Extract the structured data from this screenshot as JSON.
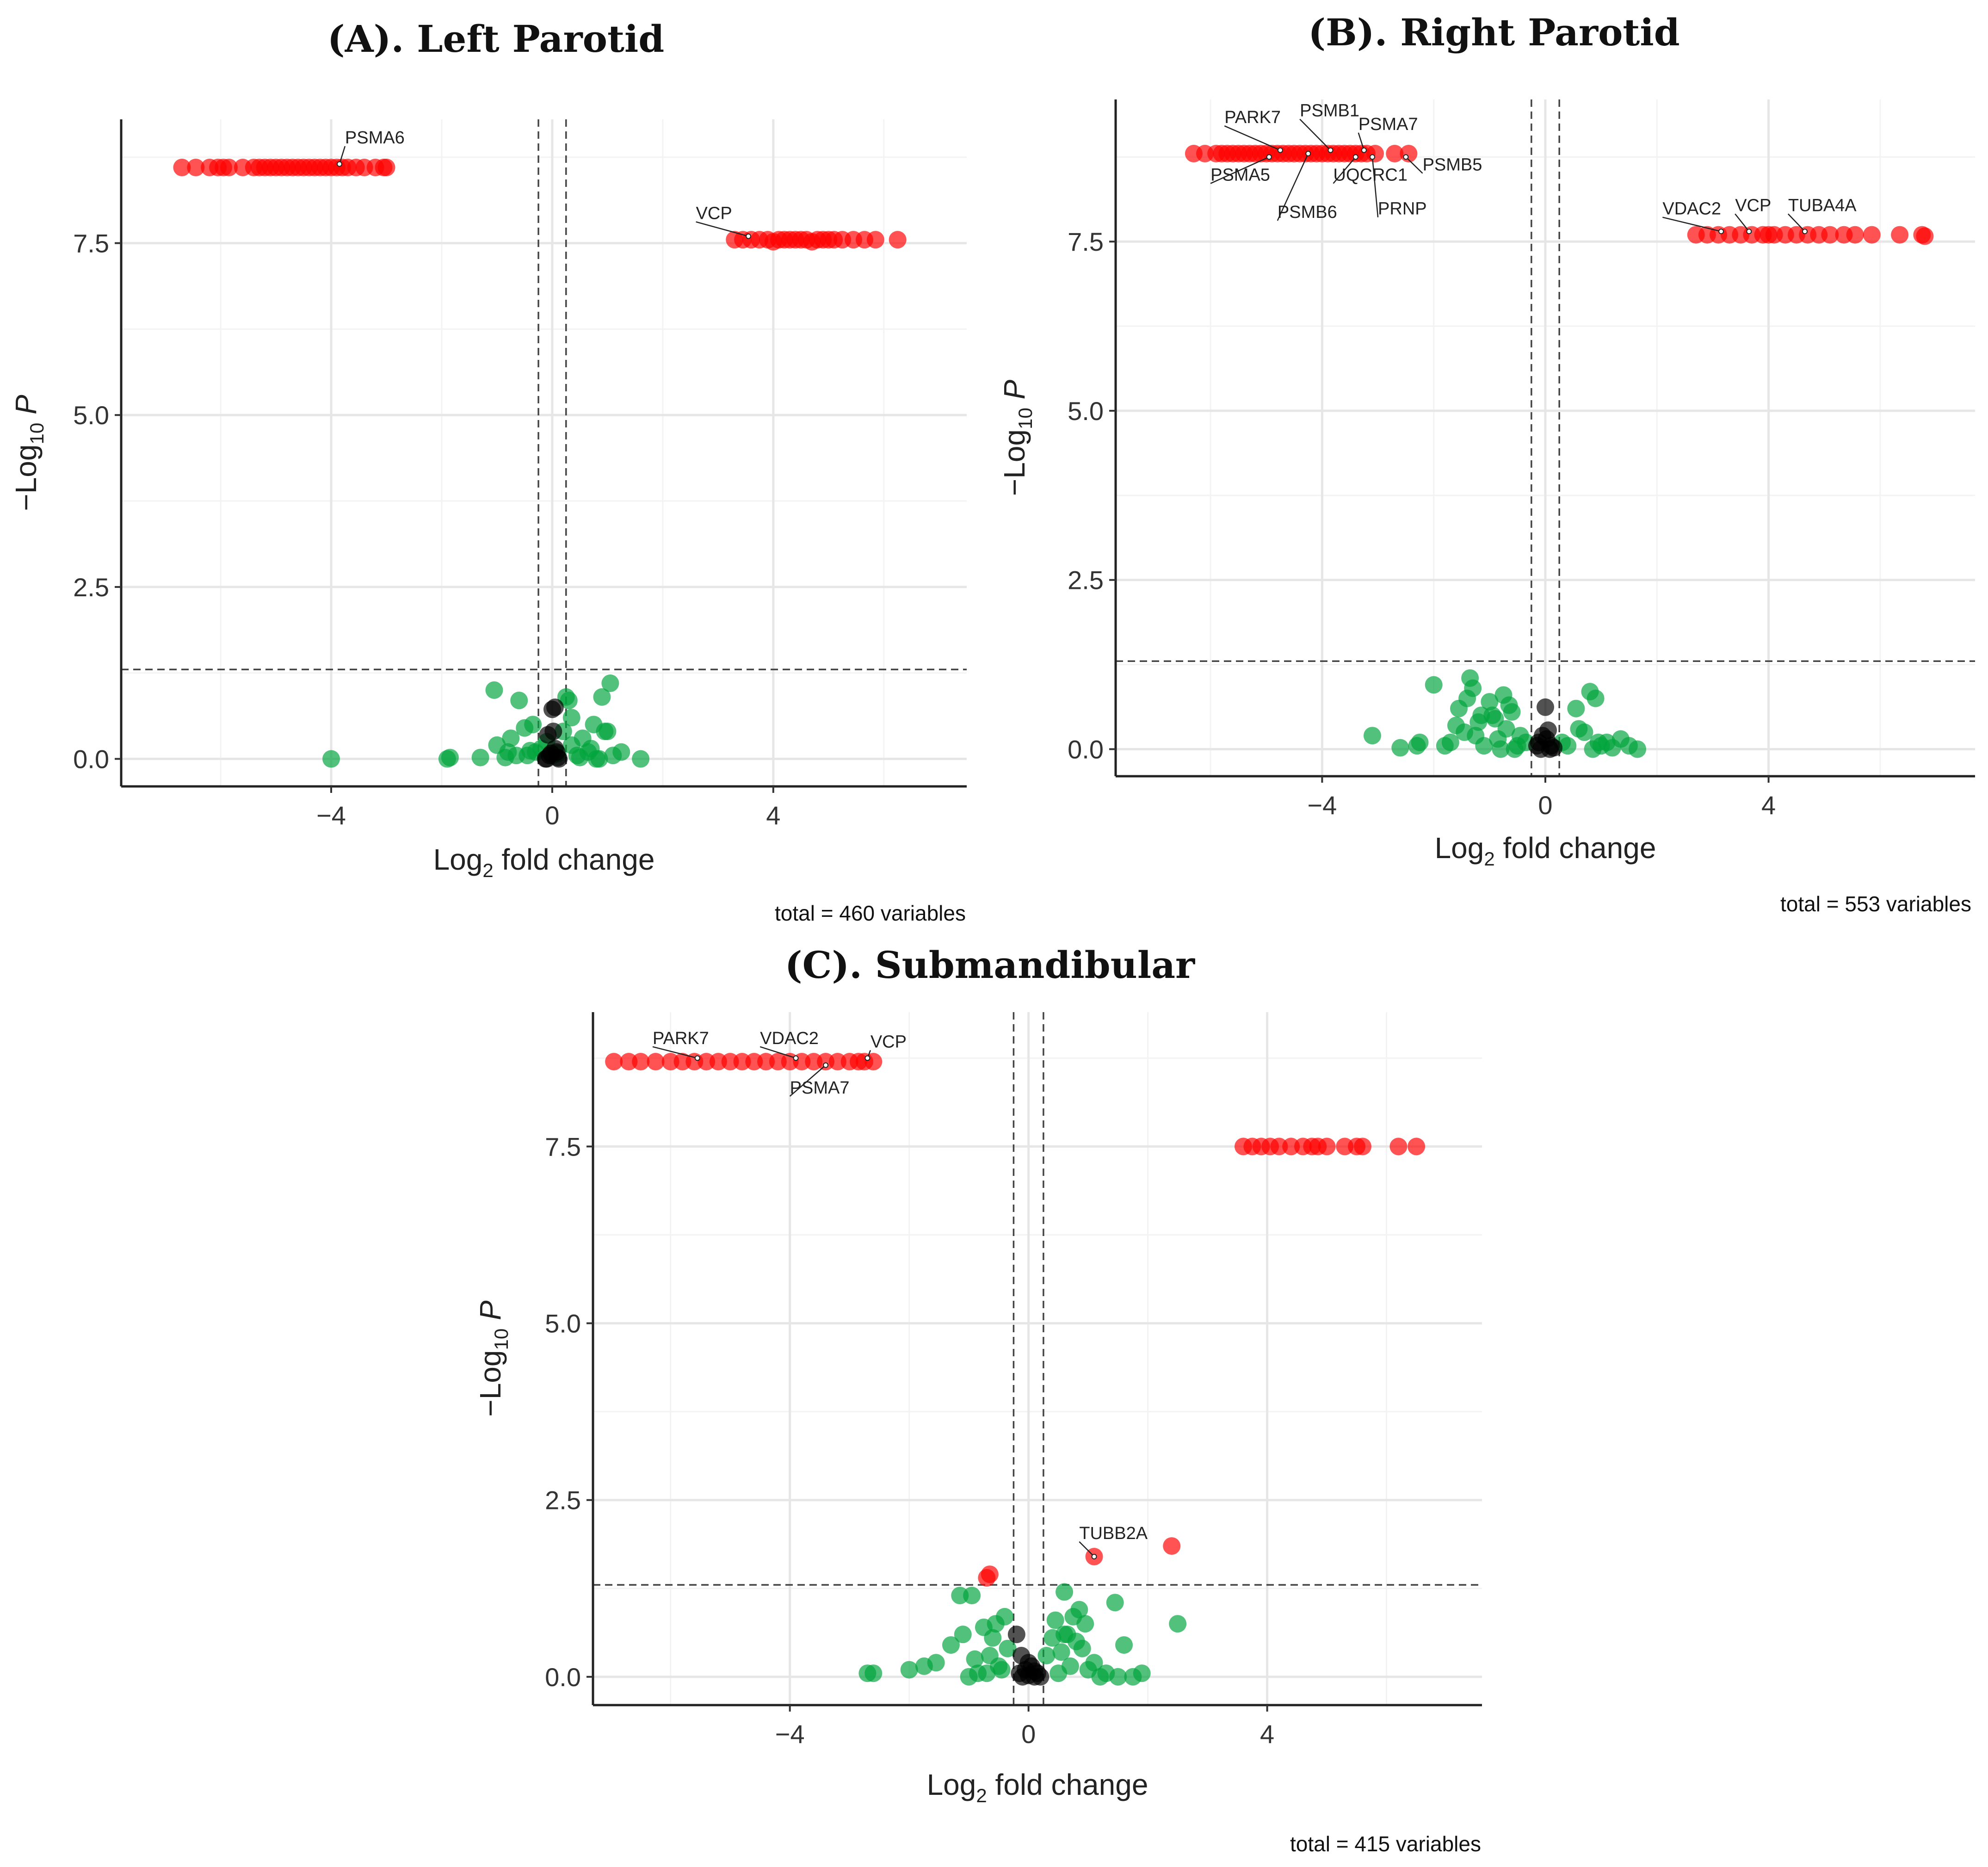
{
  "figure": {
    "panels": [
      {
        "id": "A",
        "title_prefix": "(A). ",
        "title_main": "Left Parotid",
        "caption": "total = 460 variables"
      },
      {
        "id": "B",
        "title_prefix": "(B). ",
        "title_main": "Right Parotid",
        "caption": "total = 553 variables"
      },
      {
        "id": "C",
        "title_prefix": "(C). ",
        "title_main": "Submandibular",
        "caption": "total = 415 variables"
      }
    ]
  },
  "chart_data": [
    {
      "type": "scatter",
      "title": "(A). Left Parotid",
      "xlabel": "Log2 fold change",
      "ylabel": "-Log10 P",
      "caption": "total = 460 variables",
      "xlim": [
        -7.8,
        7.5
      ],
      "ylim": [
        -0.4,
        9.3
      ],
      "x_ticks": [
        -4,
        0,
        4
      ],
      "x_tick_labels": [
        "−4",
        "0",
        "4"
      ],
      "y_ticks": [
        0.0,
        2.5,
        5.0,
        7.5
      ],
      "y_tick_labels": [
        "0.0",
        "2.5",
        "5.0",
        "7.5"
      ],
      "fc_cutoff": [
        -0.25,
        0.25
      ],
      "p_cutoff": 1.3,
      "colors": {
        "significant": "#ff0000",
        "not_significant": "#00a33c",
        "ns_fc": "#000000"
      },
      "series": [
        {
          "name": "significant",
          "color": "#ff0000",
          "x": [
            -6.7,
            -6.45,
            -6.2,
            -6.05,
            -5.95,
            -5.85,
            -5.6,
            -5.4,
            -5.3,
            -5.2,
            -5.1,
            -5.0,
            -4.9,
            -4.8,
            -4.7,
            -4.6,
            -4.5,
            -4.4,
            -4.3,
            -4.2,
            -4.1,
            -4.0,
            -3.9,
            -3.8,
            -3.7,
            -3.55,
            -3.4,
            -3.2,
            -3.05,
            -3.0,
            3.3,
            3.45,
            3.6,
            3.75,
            3.9,
            4.0,
            4.1,
            4.2,
            4.3,
            4.4,
            4.5,
            4.6,
            4.7,
            4.8,
            4.9,
            5.0,
            5.1,
            5.25,
            5.45,
            5.65,
            5.85,
            6.25
          ],
          "y": [
            8.6,
            8.6,
            8.6,
            8.6,
            8.6,
            8.6,
            8.6,
            8.6,
            8.6,
            8.6,
            8.6,
            8.6,
            8.6,
            8.6,
            8.6,
            8.6,
            8.6,
            8.6,
            8.6,
            8.6,
            8.6,
            8.6,
            8.6,
            8.6,
            8.6,
            8.6,
            8.6,
            8.6,
            8.6,
            8.6,
            7.55,
            7.55,
            7.55,
            7.55,
            7.55,
            7.52,
            7.55,
            7.55,
            7.55,
            7.55,
            7.55,
            7.55,
            7.52,
            7.55,
            7.55,
            7.55,
            7.55,
            7.55,
            7.55,
            7.55,
            7.55,
            7.55
          ]
        },
        {
          "name": "not_significant",
          "color": "#00a33c",
          "x": [
            -4.0,
            -1.9,
            -1.85,
            -1.05,
            -0.85,
            -0.75,
            -0.6,
            -0.45,
            -0.35,
            -0.3,
            -0.2,
            -0.1,
            0.0,
            0.1,
            0.2,
            0.25,
            0.3,
            0.35,
            0.45,
            0.55,
            0.65,
            0.75,
            0.85,
            0.95,
            1.05,
            1.25,
            1.6,
            -0.65,
            -0.5,
            -0.4,
            0.35,
            0.5,
            0.7,
            0.9,
            1.0,
            -1.3,
            -1.0,
            -0.8,
            0.8,
            1.1
          ],
          "y": [
            0.0,
            0.0,
            0.02,
            1.0,
            0.02,
            0.3,
            0.85,
            0.05,
            0.5,
            0.1,
            0.15,
            0.25,
            0.05,
            0.08,
            0.4,
            0.9,
            0.85,
            0.2,
            0.05,
            0.3,
            0.1,
            0.5,
            0.0,
            0.4,
            1.1,
            0.1,
            0.0,
            0.05,
            0.45,
            0.12,
            0.6,
            0.02,
            0.15,
            0.9,
            0.4,
            0.02,
            0.2,
            0.1,
            0.0,
            0.05
          ]
        },
        {
          "name": "ns_fc",
          "color": "#000000",
          "x": [
            -0.12,
            -0.05,
            0.0,
            0.05,
            0.1,
            -0.08,
            0.02,
            0.08,
            -0.02,
            0.05,
            -0.1,
            0.12
          ],
          "y": [
            0.0,
            0.05,
            0.72,
            0.75,
            0.02,
            0.35,
            0.4,
            0.1,
            0.08,
            0.15,
            0.0,
            0.0
          ]
        }
      ],
      "labels": [
        {
          "gene": "PSMA6",
          "px": -3.85,
          "py": 8.65,
          "lx": -3.75,
          "ly": 8.95
        },
        {
          "gene": "VCP",
          "px": 3.55,
          "py": 7.6,
          "lx": 2.6,
          "ly": 7.85
        }
      ]
    },
    {
      "type": "scatter",
      "title": "(B). Right Parotid",
      "xlabel": "Log2 fold change",
      "ylabel": "-Log10 P",
      "caption": "total = 553 variables",
      "xlim": [
        -7.7,
        7.7
      ],
      "ylim": [
        -0.4,
        9.6
      ],
      "x_ticks": [
        -4,
        0,
        4
      ],
      "x_tick_labels": [
        "−4",
        "0",
        "4"
      ],
      "y_ticks": [
        0.0,
        2.5,
        5.0,
        7.5
      ],
      "y_tick_labels": [
        "0.0",
        "2.5",
        "5.0",
        "7.5"
      ],
      "fc_cutoff": [
        -0.25,
        0.25
      ],
      "p_cutoff": 1.3,
      "colors": {
        "significant": "#ff0000",
        "not_significant": "#00a33c",
        "ns_fc": "#000000"
      },
      "series": [
        {
          "name": "significant",
          "color": "#ff0000",
          "x": [
            -6.3,
            -6.1,
            -5.9,
            -5.8,
            -5.7,
            -5.6,
            -5.5,
            -5.4,
            -5.3,
            -5.2,
            -5.1,
            -5.0,
            -4.9,
            -4.8,
            -4.7,
            -4.6,
            -4.5,
            -4.4,
            -4.3,
            -4.2,
            -4.1,
            -4.0,
            -3.9,
            -3.8,
            -3.7,
            -3.6,
            -3.5,
            -3.4,
            -3.3,
            -3.2,
            -3.05,
            -2.7,
            -2.45,
            2.7,
            2.9,
            3.1,
            3.3,
            3.5,
            3.7,
            3.9,
            4.0,
            4.1,
            4.3,
            4.5,
            4.7,
            4.9,
            5.1,
            5.35,
            5.55,
            5.85,
            6.35,
            6.75,
            6.8
          ],
          "y": [
            8.8,
            8.8,
            8.8,
            8.8,
            8.8,
            8.8,
            8.8,
            8.8,
            8.8,
            8.8,
            8.8,
            8.8,
            8.8,
            8.8,
            8.8,
            8.8,
            8.8,
            8.8,
            8.8,
            8.8,
            8.8,
            8.8,
            8.8,
            8.8,
            8.8,
            8.8,
            8.8,
            8.8,
            8.8,
            8.8,
            8.8,
            8.8,
            8.8,
            7.6,
            7.6,
            7.6,
            7.6,
            7.6,
            7.6,
            7.6,
            7.6,
            7.6,
            7.6,
            7.6,
            7.6,
            7.6,
            7.6,
            7.6,
            7.6,
            7.6,
            7.6,
            7.6,
            7.58
          ]
        },
        {
          "name": "not_significant",
          "color": "#00a33c",
          "x": [
            -3.1,
            -2.6,
            -2.3,
            -2.25,
            -2.0,
            -1.7,
            -1.55,
            -1.45,
            -1.35,
            -1.3,
            -1.2,
            -1.1,
            -1.0,
            -0.95,
            -0.85,
            -0.75,
            -0.7,
            -0.6,
            -0.5,
            -0.45,
            -0.35,
            0.3,
            0.4,
            0.55,
            0.7,
            0.8,
            0.9,
            1.0,
            1.1,
            1.2,
            1.35,
            1.5,
            1.65,
            -1.6,
            -1.4,
            -1.25,
            -0.9,
            -0.65,
            -0.55,
            0.6,
            0.85,
            0.95,
            -1.8,
            -1.15,
            -0.8
          ],
          "y": [
            0.2,
            0.02,
            0.05,
            0.1,
            0.95,
            0.1,
            0.6,
            0.25,
            1.05,
            0.9,
            0.4,
            0.05,
            0.7,
            0.5,
            0.15,
            0.8,
            0.3,
            0.55,
            0.05,
            0.2,
            0.1,
            0.1,
            0.05,
            0.6,
            0.25,
            0.85,
            0.75,
            0.05,
            0.1,
            0.02,
            0.15,
            0.05,
            0.0,
            0.35,
            0.75,
            0.2,
            0.45,
            0.65,
            0.0,
            0.3,
            0.0,
            0.1,
            0.05,
            0.5,
            0.0
          ]
        },
        {
          "name": "ns_fc",
          "color": "#000000",
          "x": [
            -0.15,
            -0.08,
            0.0,
            0.05,
            0.1,
            0.15,
            -0.12,
            0.02,
            0.08,
            -0.05
          ],
          "y": [
            0.05,
            0.0,
            0.62,
            0.28,
            0.05,
            0.02,
            0.1,
            0.15,
            0.0,
            0.2
          ]
        }
      ],
      "labels": [
        {
          "gene": "PARK7",
          "px": -4.75,
          "py": 8.85,
          "lx": -5.75,
          "ly": 9.25
        },
        {
          "gene": "PSMB1",
          "px": -3.85,
          "py": 8.85,
          "lx": -4.4,
          "ly": 9.35
        },
        {
          "gene": "PSMA7",
          "px": -3.25,
          "py": 8.85,
          "lx": -3.35,
          "ly": 9.15
        },
        {
          "gene": "PSMA5",
          "px": -4.95,
          "py": 8.75,
          "lx": -6.0,
          "ly": 8.4
        },
        {
          "gene": "PSMB6",
          "px": -4.25,
          "py": 8.8,
          "lx": -4.8,
          "ly": 7.85
        },
        {
          "gene": "UQCRC1",
          "px": -3.4,
          "py": 8.75,
          "lx": -3.8,
          "ly": 8.4
        },
        {
          "gene": "PSMB5",
          "px": -2.5,
          "py": 8.75,
          "lx": -2.2,
          "ly": 8.55
        },
        {
          "gene": "PRNP",
          "px": -3.1,
          "py": 8.75,
          "lx": -3.0,
          "ly": 7.9
        },
        {
          "gene": "VDAC2",
          "px": 3.15,
          "py": 7.65,
          "lx": 2.1,
          "ly": 7.9
        },
        {
          "gene": "VCP",
          "px": 3.65,
          "py": 7.65,
          "lx": 3.4,
          "ly": 7.95
        },
        {
          "gene": "TUBA4A",
          "px": 4.65,
          "py": 7.65,
          "lx": 4.35,
          "ly": 7.95
        }
      ]
    },
    {
      "type": "scatter",
      "title": "(C). Submandibular",
      "xlabel": "Log2 fold change",
      "ylabel": "-Log10 P",
      "caption": "total = 415 variables",
      "xlim": [
        -7.3,
        7.6
      ],
      "ylim": [
        -0.4,
        9.4
      ],
      "x_ticks": [
        -4,
        0,
        4
      ],
      "x_tick_labels": [
        "−4",
        "0",
        "4"
      ],
      "y_ticks": [
        0.0,
        2.5,
        5.0,
        7.5
      ],
      "y_tick_labels": [
        "0.0",
        "2.5",
        "5.0",
        "7.5"
      ],
      "fc_cutoff": [
        -0.25,
        0.25
      ],
      "p_cutoff": 1.3,
      "colors": {
        "significant": "#ff0000",
        "not_significant": "#00a33c",
        "ns_fc": "#000000"
      },
      "series": [
        {
          "name": "significant",
          "color": "#ff0000",
          "x": [
            -6.95,
            -6.7,
            -6.5,
            -6.25,
            -6.0,
            -5.8,
            -5.6,
            -5.4,
            -5.2,
            -5.0,
            -4.8,
            -4.6,
            -4.4,
            -4.2,
            -4.0,
            -3.8,
            -3.6,
            -3.4,
            -3.2,
            -3.0,
            -2.85,
            -2.75,
            -2.6,
            3.6,
            3.75,
            3.9,
            4.05,
            4.2,
            4.4,
            4.6,
            4.75,
            4.85,
            5.0,
            5.3,
            5.5,
            5.6,
            6.2,
            6.5,
            -0.7,
            -0.65,
            1.1,
            2.4
          ],
          "y": [
            8.7,
            8.7,
            8.7,
            8.7,
            8.7,
            8.7,
            8.7,
            8.7,
            8.7,
            8.7,
            8.7,
            8.7,
            8.7,
            8.7,
            8.7,
            8.7,
            8.7,
            8.7,
            8.7,
            8.7,
            8.7,
            8.7,
            8.7,
            7.5,
            7.5,
            7.5,
            7.5,
            7.5,
            7.5,
            7.5,
            7.5,
            7.5,
            7.5,
            7.5,
            7.5,
            7.5,
            7.5,
            7.5,
            1.4,
            1.45,
            1.7,
            1.85
          ]
        },
        {
          "name": "not_significant",
          "color": "#00a33c",
          "x": [
            -2.7,
            -2.6,
            -1.75,
            -1.55,
            -1.3,
            -1.15,
            -1.0,
            -0.95,
            -0.85,
            -0.75,
            -0.65,
            -0.6,
            -0.55,
            -0.45,
            -0.4,
            -0.35,
            0.3,
            0.4,
            0.5,
            0.6,
            0.65,
            0.7,
            0.75,
            0.8,
            0.85,
            0.9,
            1.0,
            1.1,
            1.3,
            1.45,
            1.5,
            1.6,
            1.75,
            1.9,
            2.5,
            -1.1,
            -0.9,
            -0.7,
            -0.5,
            0.55,
            0.95,
            1.2,
            -2.0,
            0.45,
            0.6
          ],
          "y": [
            0.05,
            0.05,
            0.15,
            0.2,
            0.45,
            1.15,
            0.0,
            1.15,
            0.05,
            0.7,
            0.3,
            0.55,
            0.75,
            0.1,
            0.85,
            0.4,
            0.3,
            0.55,
            0.05,
            1.2,
            0.6,
            0.15,
            0.85,
            0.5,
            0.95,
            0.4,
            0.1,
            0.2,
            0.05,
            1.05,
            0.0,
            0.45,
            0.0,
            0.05,
            0.75,
            0.6,
            0.25,
            0.05,
            0.15,
            0.35,
            0.75,
            0.0,
            0.1,
            0.8,
            0.6
          ]
        },
        {
          "name": "ns_fc",
          "color": "#000000",
          "x": [
            -0.2,
            -0.15,
            -0.1,
            -0.05,
            0.0,
            0.05,
            0.1,
            0.15,
            0.2,
            -0.12,
            0.0,
            0.1
          ],
          "y": [
            0.6,
            0.05,
            0.0,
            0.1,
            0.02,
            0.15,
            0.0,
            0.05,
            0.0,
            0.3,
            0.2,
            0.08
          ]
        }
      ],
      "labels": [
        {
          "gene": "PARK7",
          "px": -5.55,
          "py": 8.75,
          "lx": -6.3,
          "ly": 8.95
        },
        {
          "gene": "VDAC2",
          "px": -3.9,
          "py": 8.75,
          "lx": -4.5,
          "ly": 8.95
        },
        {
          "gene": "PSMA7",
          "px": -3.4,
          "py": 8.65,
          "lx": -4.0,
          "ly": 8.25
        },
        {
          "gene": "VCP",
          "px": -2.7,
          "py": 8.75,
          "lx": -2.65,
          "ly": 8.9
        },
        {
          "gene": "TUBB2A",
          "px": 1.1,
          "py": 1.7,
          "lx": 0.85,
          "ly": 1.95
        }
      ]
    }
  ]
}
